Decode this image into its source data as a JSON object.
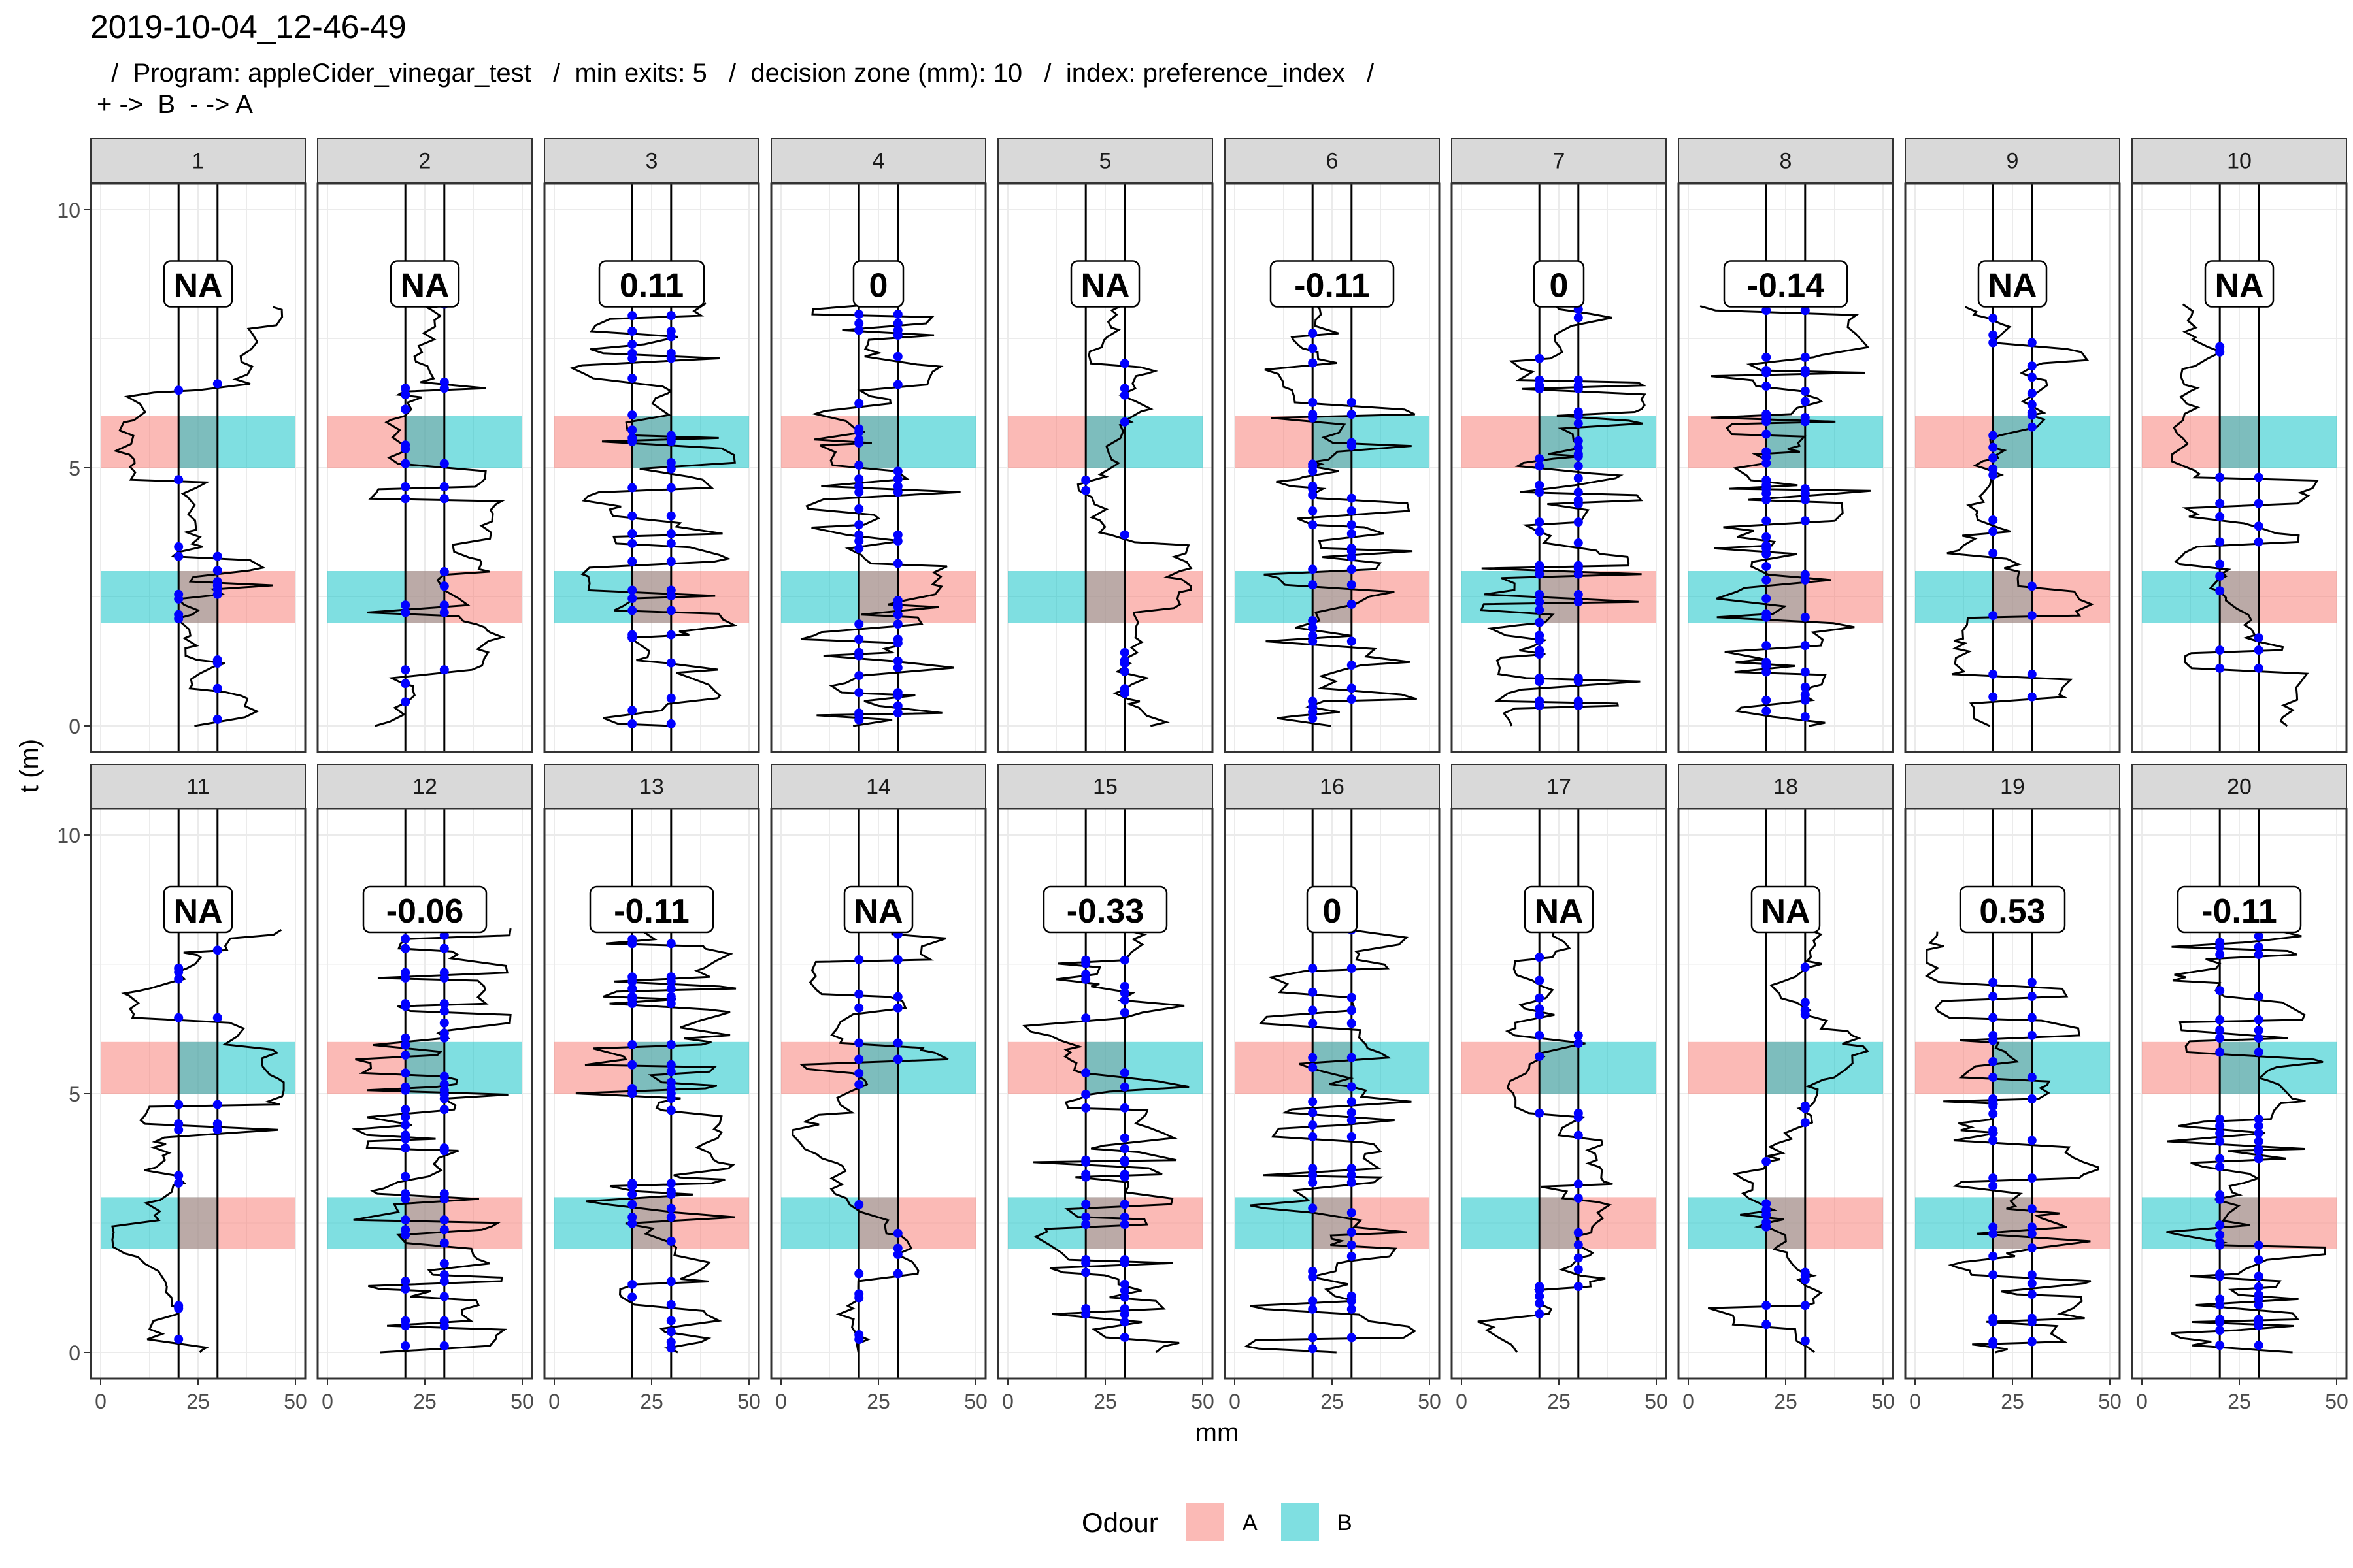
{
  "header": {
    "title": "2019-10-04_12-46-49",
    "subtitle_line1": "  /  Program: appleCider_vinegar_test   /  min exits: 5   /  decision zone (mm): 10   /  index: preference_index   /",
    "subtitle_line2": "+ ->  B  - -> A"
  },
  "colors": {
    "odour_A": "#F8766D",
    "odour_B": "#00BFC4",
    "track": "#000000",
    "crossing_point": "#0000FF",
    "strip_bg": "#D9D9D9",
    "grid": "#EBEBEB"
  },
  "chart_data": {
    "type": "line",
    "xlabel": "mm",
    "ylabel": "t (m)",
    "xlim": [
      0,
      50
    ],
    "ylim": [
      0,
      10
    ],
    "x_ticks": [
      "0",
      "25",
      "50"
    ],
    "y_ticks": [
      "0",
      "5",
      "10"
    ],
    "decision_lines_mm": [
      20,
      30
    ],
    "legend": {
      "title": "Odour",
      "position": "bottom",
      "entries": [
        "A",
        "B"
      ]
    },
    "odour_bands": [
      {
        "t_start": 2,
        "t_end": 3,
        "left": "B",
        "right": "A"
      },
      {
        "t_start": 5,
        "t_end": 6,
        "left": "A",
        "right": "B"
      }
    ],
    "panels": [
      {
        "id": "1",
        "index": "NA"
      },
      {
        "id": "2",
        "index": "NA"
      },
      {
        "id": "3",
        "index": "0.11"
      },
      {
        "id": "4",
        "index": "0"
      },
      {
        "id": "5",
        "index": "NA"
      },
      {
        "id": "6",
        "index": "-0.11"
      },
      {
        "id": "7",
        "index": "0"
      },
      {
        "id": "8",
        "index": "-0.14"
      },
      {
        "id": "9",
        "index": "NA"
      },
      {
        "id": "10",
        "index": "NA"
      },
      {
        "id": "11",
        "index": "NA"
      },
      {
        "id": "12",
        "index": "-0.06"
      },
      {
        "id": "13",
        "index": "-0.11"
      },
      {
        "id": "14",
        "index": "NA"
      },
      {
        "id": "15",
        "index": "-0.33"
      },
      {
        "id": "16",
        "index": "0"
      },
      {
        "id": "17",
        "index": "NA"
      },
      {
        "id": "18",
        "index": "NA"
      },
      {
        "id": "19",
        "index": "0.53"
      },
      {
        "id": "20",
        "index": "-0.11"
      }
    ]
  }
}
